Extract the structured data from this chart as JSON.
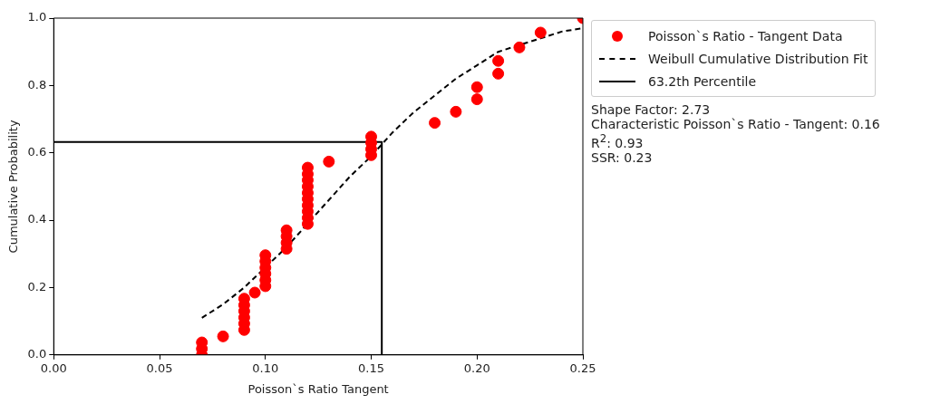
{
  "chart_data": {
    "type": "scatter",
    "xlabel": "Poisson`s Ratio Tangent",
    "ylabel": "Cumulative Probability",
    "xlim": [
      0,
      0.25
    ],
    "ylim": [
      0,
      1
    ],
    "xticks": [
      {
        "value": 0,
        "label": "0.00"
      },
      {
        "value": 0.05,
        "label": "0.05"
      },
      {
        "value": 0.1,
        "label": "0.10"
      },
      {
        "value": 0.15,
        "label": "0.15"
      },
      {
        "value": 0.2,
        "label": "0.20"
      },
      {
        "value": 0.25,
        "label": "0.25"
      }
    ],
    "yticks": [
      {
        "value": 0,
        "label": "0.0"
      },
      0.2,
      0.4,
      0.6,
      0.8,
      {
        "value": 1,
        "label": "1.0"
      }
    ],
    "grid": false,
    "legend": "right",
    "series": [
      {
        "name": "Poisson`s Ratio - Tangent Data",
        "type": "scatter",
        "color": "#ff0000",
        "marker": "circle",
        "x": [
          0.07,
          0.07,
          0.07,
          0.08,
          0.09,
          0.09,
          0.09,
          0.09,
          0.09,
          0.09,
          0.095,
          0.1,
          0.1,
          0.1,
          0.1,
          0.1,
          0.1,
          0.11,
          0.11,
          0.11,
          0.11,
          0.12,
          0.12,
          0.12,
          0.12,
          0.12,
          0.12,
          0.12,
          0.12,
          0.12,
          0.12,
          0.13,
          0.15,
          0.15,
          0.15,
          0.15,
          0.18,
          0.19,
          0.2,
          0.2,
          0.21,
          0.21,
          0.22,
          0.23,
          0.25
        ],
        "values": [
          0.0,
          0.018,
          0.037,
          0.055,
          0.074,
          0.093,
          0.111,
          0.13,
          0.148,
          0.167,
          0.185,
          0.204,
          0.222,
          0.241,
          0.259,
          0.278,
          0.296,
          0.315,
          0.333,
          0.352,
          0.37,
          0.389,
          0.407,
          0.426,
          0.444,
          0.463,
          0.481,
          0.5,
          0.519,
          0.537,
          0.556,
          0.574,
          0.593,
          0.611,
          0.63,
          0.648,
          0.689,
          0.722,
          0.759,
          0.795,
          0.835,
          0.873,
          0.913,
          0.957,
          1.0
        ]
      },
      {
        "name": "Weibull Cumulative Distribution Fit",
        "type": "line",
        "color": "#000000",
        "line_style": "dashed",
        "marker": "none",
        "x": [
          0.07,
          0.08,
          0.09,
          0.1,
          0.11,
          0.12,
          0.13,
          0.14,
          0.15,
          0.16,
          0.17,
          0.18,
          0.19,
          0.2,
          0.21,
          0.22,
          0.23,
          0.24,
          0.25
        ],
        "values": [
          0.11,
          0.15,
          0.2,
          0.26,
          0.32,
          0.39,
          0.46,
          0.53,
          0.59,
          0.66,
          0.72,
          0.77,
          0.82,
          0.86,
          0.9,
          0.92,
          0.94,
          0.96,
          0.97
        ]
      },
      {
        "name": "63.2th Percentile",
        "type": "line",
        "color": "#000000",
        "line_style": "solid",
        "marker": "none",
        "x": [
          0,
          0.155,
          0.155
        ],
        "values": [
          0.632,
          0.632,
          0
        ]
      }
    ],
    "annotations": [
      "Shape Factor: 2.73",
      "Characteristic Poisson`s Ratio - Tangent: 0.16",
      "R$^{2}$: 0.93",
      "SSR: 0.23"
    ]
  }
}
